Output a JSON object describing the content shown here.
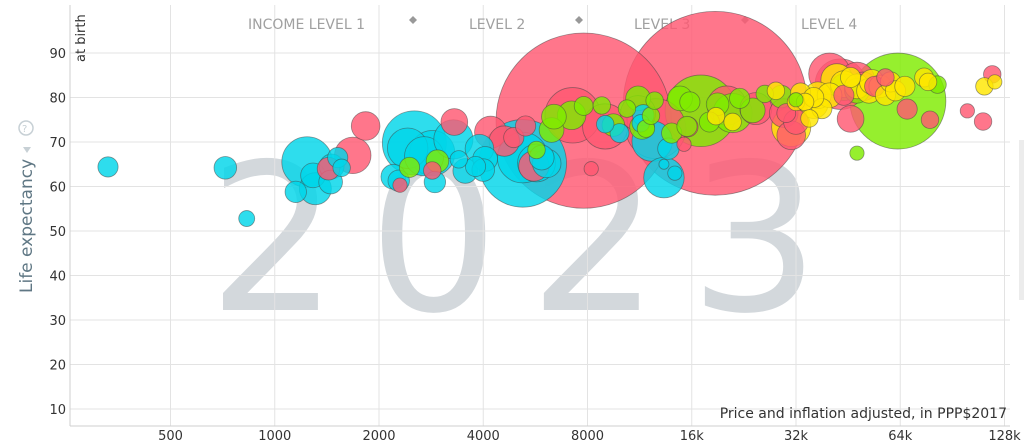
{
  "chart_data": {
    "type": "scatter",
    "year": "2023",
    "ylabel": "Life expectancy",
    "ylabel_sub": "at birth",
    "ylim": [
      6,
      97
    ],
    "y_ticks": [
      10,
      20,
      30,
      40,
      50,
      60,
      70,
      80,
      90
    ],
    "x_scale": "log2",
    "xlim": [
      250,
      140000
    ],
    "x_ticks": [
      {
        "value": 500,
        "label": "500"
      },
      {
        "value": 1000,
        "label": "1000"
      },
      {
        "value": 2000,
        "label": "2000"
      },
      {
        "value": 4000,
        "label": "4000"
      },
      {
        "value": 8000,
        "label": "8000"
      },
      {
        "value": 16000,
        "label": "16k"
      },
      {
        "value": 32000,
        "label": "32k"
      },
      {
        "value": 64000,
        "label": "64k"
      },
      {
        "value": 128000,
        "label": "128k"
      }
    ],
    "x_note": "Price and inflation adjusted, in PPP$2017",
    "income_levels": [
      "INCOME LEVEL 1",
      "LEVEL 2",
      "LEVEL 3",
      "LEVEL 4"
    ],
    "grid": true,
    "region_colors": {
      "asia": "#ff5872",
      "africa": "#00d5e9",
      "americas": "#7feb00",
      "europe": "#ffe700"
    },
    "series": [
      {
        "region": "africa",
        "points": [
          [
            330,
            64.4,
            40
          ],
          [
            720,
            64.2,
            50
          ],
          [
            830,
            52.8,
            25
          ],
          [
            1150,
            58.8,
            45
          ],
          [
            1240,
            65.5,
            250
          ],
          [
            1290,
            62.5,
            60
          ],
          [
            1310,
            59.5,
            100
          ],
          [
            1450,
            61,
            55
          ],
          [
            1460,
            64.5,
            60
          ],
          [
            1520,
            66.5,
            40
          ],
          [
            1560,
            64.2,
            30
          ],
          [
            2200,
            62.2,
            60
          ],
          [
            2280,
            61.3,
            45
          ],
          [
            2420,
            68.6,
            160
          ],
          [
            2530,
            69.8,
            400
          ],
          [
            2700,
            66.8,
            150
          ],
          [
            2850,
            67.5,
            200
          ],
          [
            2900,
            61,
            45
          ],
          [
            3280,
            70.6,
            150
          ],
          [
            3400,
            66.1,
            30
          ],
          [
            3550,
            63.5,
            60
          ],
          [
            3800,
            64.5,
            40
          ],
          [
            3900,
            68.5,
            80
          ],
          [
            4000,
            63.7,
            50
          ],
          [
            4050,
            66.2,
            60
          ],
          [
            5200,
            66.5,
            250
          ],
          [
            5200,
            65.2,
            750
          ],
          [
            5700,
            65.3,
            140
          ],
          [
            5900,
            66.5,
            60
          ],
          [
            6100,
            65.2,
            80
          ],
          [
            9000,
            74,
            30
          ],
          [
            9900,
            72,
            35
          ],
          [
            11400,
            74.2,
            30
          ],
          [
            12300,
            70.2,
            160
          ],
          [
            13300,
            62,
            160
          ],
          [
            13700,
            68.5,
            45
          ],
          [
            14300,
            63,
            20
          ],
          [
            11600,
            76,
            45
          ],
          [
            13300,
            65,
            10
          ]
        ]
      },
      {
        "region": "asia",
        "points": [
          [
            1430,
            64,
            50
          ],
          [
            1680,
            67,
            130
          ],
          [
            1830,
            73.6,
            80
          ],
          [
            2300,
            60.3,
            20
          ],
          [
            2850,
            63.6,
            30
          ],
          [
            3300,
            74.5,
            70
          ],
          [
            4200,
            72.2,
            100
          ],
          [
            4600,
            70.2,
            90
          ],
          [
            4900,
            71,
            40
          ],
          [
            5300,
            73.6,
            40
          ],
          [
            5600,
            64.6,
            90
          ],
          [
            7250,
            76,
            300
          ],
          [
            7800,
            74.8,
            3000
          ],
          [
            8200,
            64,
            20
          ],
          [
            9000,
            73.5,
            200
          ],
          [
            11200,
            76.5,
            120
          ],
          [
            12600,
            73,
            350
          ],
          [
            15200,
            69.5,
            20
          ],
          [
            15600,
            73.4,
            40
          ],
          [
            18700,
            78.7,
            3300
          ],
          [
            20200,
            78.2,
            150
          ],
          [
            24500,
            77.5,
            100
          ],
          [
            29500,
            76.5,
            80
          ],
          [
            30000,
            76.5,
            35
          ],
          [
            31000,
            71.5,
            80
          ],
          [
            32000,
            74.5,
            60
          ],
          [
            40000,
            85.3,
            170
          ],
          [
            43000,
            83,
            250
          ],
          [
            44000,
            80.5,
            40
          ],
          [
            46000,
            75.2,
            70
          ],
          [
            48000,
            84,
            120
          ],
          [
            50000,
            82.5,
            80
          ],
          [
            54000,
            82.5,
            40
          ],
          [
            58000,
            84.5,
            30
          ],
          [
            67000,
            77.4,
            40
          ],
          [
            78000,
            75,
            30
          ],
          [
            100000,
            77,
            20
          ],
          [
            111000,
            74.6,
            30
          ],
          [
            118000,
            85.2,
            30
          ]
        ]
      },
      {
        "region": "americas",
        "points": [
          [
            2450,
            64.3,
            40
          ],
          [
            2950,
            65.7,
            50
          ],
          [
            5700,
            68.2,
            30
          ],
          [
            6300,
            72.7,
            60
          ],
          [
            6400,
            75.7,
            60
          ],
          [
            7200,
            76,
            80
          ],
          [
            7800,
            78.1,
            35
          ],
          [
            8800,
            78.2,
            30
          ],
          [
            9500,
            73.8,
            50
          ],
          [
            10400,
            77.5,
            30
          ],
          [
            11200,
            79.8,
            60
          ],
          [
            11500,
            73.4,
            60
          ],
          [
            11800,
            73,
            30
          ],
          [
            12200,
            75.9,
            30
          ],
          [
            12500,
            79.3,
            30
          ],
          [
            14000,
            72,
            40
          ],
          [
            14800,
            79.8,
            60
          ],
          [
            15500,
            73.5,
            40
          ],
          [
            15800,
            79,
            40
          ],
          [
            17000,
            77,
            500
          ],
          [
            18000,
            74.5,
            40
          ],
          [
            19000,
            78.5,
            50
          ],
          [
            21000,
            76.5,
            150
          ],
          [
            22000,
            79.8,
            40
          ],
          [
            24000,
            77.1,
            60
          ],
          [
            26000,
            80.8,
            30
          ],
          [
            29000,
            80.2,
            50
          ],
          [
            32000,
            79.5,
            20
          ],
          [
            44000,
            82.3,
            70
          ],
          [
            48000,
            81.5,
            60
          ],
          [
            63000,
            79.2,
            900
          ],
          [
            82000,
            82.9,
            30
          ],
          [
            48000,
            67.5,
            20
          ]
        ]
      },
      {
        "region": "europe",
        "points": [
          [
            18800,
            75.8,
            30
          ],
          [
            21000,
            74.5,
            30
          ],
          [
            31000,
            73.4,
            150
          ],
          [
            32000,
            79,
            30
          ],
          [
            33000,
            81,
            40
          ],
          [
            34000,
            79,
            30
          ],
          [
            35000,
            75.3,
            30
          ],
          [
            36000,
            78.5,
            80
          ],
          [
            37000,
            80.5,
            70
          ],
          [
            38000,
            77.5,
            40
          ],
          [
            40000,
            80.5,
            60
          ],
          [
            42000,
            84,
            100
          ],
          [
            44000,
            83,
            70
          ],
          [
            46000,
            84.5,
            40
          ],
          [
            48000,
            82.5,
            60
          ],
          [
            52000,
            81.5,
            60
          ],
          [
            53000,
            83.5,
            60
          ],
          [
            56000,
            82.5,
            50
          ],
          [
            58000,
            80.5,
            40
          ],
          [
            60000,
            83.5,
            40
          ],
          [
            62000,
            81.5,
            40
          ],
          [
            66000,
            82.5,
            40
          ],
          [
            75000,
            84.5,
            35
          ],
          [
            77000,
            83.5,
            30
          ],
          [
            112000,
            82.5,
            30
          ],
          [
            120000,
            83.5,
            20
          ],
          [
            28000,
            81.5,
            30
          ],
          [
            36000,
            80,
            40
          ]
        ]
      }
    ]
  }
}
